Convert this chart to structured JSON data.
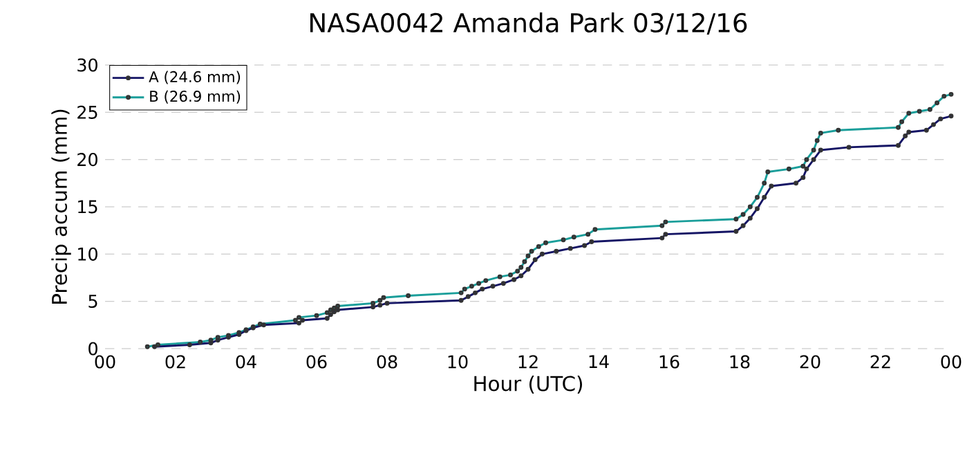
{
  "chart_data": {
    "type": "line",
    "title": "NASA0042 Amanda Park 03/12/16",
    "xlabel": "Hour (UTC)",
    "ylabel": "Precip accum (mm)",
    "xlim": [
      0,
      24
    ],
    "ylim": [
      0,
      30
    ],
    "xticks": [
      {
        "value": 0,
        "label": "00"
      },
      {
        "value": 2,
        "label": "02"
      },
      {
        "value": 4,
        "label": "04"
      },
      {
        "value": 6,
        "label": "06"
      },
      {
        "value": 8,
        "label": "08"
      },
      {
        "value": 10,
        "label": "10"
      },
      {
        "value": 12,
        "label": "12"
      },
      {
        "value": 14,
        "label": "14"
      },
      {
        "value": 16,
        "label": "16"
      },
      {
        "value": 18,
        "label": "18"
      },
      {
        "value": 20,
        "label": "20"
      },
      {
        "value": 22,
        "label": "22"
      },
      {
        "value": 24,
        "label": "00"
      }
    ],
    "yticks": [
      0,
      5,
      10,
      15,
      20,
      25,
      30
    ],
    "grid": "y",
    "legend": "top left",
    "marker": "circle",
    "line_style": "solid",
    "series": [
      {
        "name": "A (24.6 mm)",
        "color": "#141464",
        "x": [
          1.4,
          2.4,
          3.0,
          3.2,
          3.5,
          3.8,
          4.0,
          4.2,
          4.5,
          5.5,
          5.6,
          6.3,
          6.4,
          6.5,
          6.6,
          7.6,
          7.8,
          8.0,
          10.1,
          10.3,
          10.5,
          10.7,
          11.0,
          11.3,
          11.6,
          11.8,
          12.0,
          12.2,
          12.4,
          12.8,
          13.2,
          13.6,
          13.8,
          15.8,
          15.9,
          17.9,
          18.1,
          18.3,
          18.5,
          18.7,
          18.9,
          19.6,
          19.8,
          19.9,
          20.1,
          20.3,
          21.1,
          22.5,
          22.7,
          22.8,
          23.3,
          23.5,
          23.7,
          24.0
        ],
        "values": [
          0.2,
          0.4,
          0.6,
          0.9,
          1.2,
          1.5,
          1.9,
          2.2,
          2.5,
          2.7,
          3.0,
          3.2,
          3.6,
          3.9,
          4.1,
          4.4,
          4.6,
          4.8,
          5.1,
          5.5,
          5.9,
          6.3,
          6.6,
          6.9,
          7.3,
          7.7,
          8.4,
          9.4,
          10.0,
          10.3,
          10.6,
          10.9,
          11.3,
          11.7,
          12.1,
          12.4,
          13.0,
          13.8,
          14.8,
          16.0,
          17.2,
          17.5,
          18.1,
          19.0,
          20.0,
          21.0,
          21.3,
          21.5,
          22.5,
          22.9,
          23.1,
          23.7,
          24.3,
          24.6
        ]
      },
      {
        "name": "B (26.9 mm)",
        "color": "#1a9e9a",
        "x": [
          1.2,
          1.5,
          2.7,
          3.0,
          3.2,
          3.5,
          3.8,
          4.0,
          4.2,
          4.4,
          5.4,
          5.5,
          6.0,
          6.3,
          6.4,
          6.5,
          6.6,
          7.6,
          7.8,
          7.9,
          8.6,
          10.1,
          10.2,
          10.4,
          10.6,
          10.8,
          11.2,
          11.5,
          11.7,
          11.8,
          11.9,
          12.0,
          12.1,
          12.3,
          12.5,
          13.0,
          13.3,
          13.7,
          13.9,
          15.8,
          15.9,
          17.9,
          18.1,
          18.3,
          18.5,
          18.7,
          18.8,
          19.4,
          19.8,
          19.9,
          20.1,
          20.2,
          20.3,
          20.8,
          22.5,
          22.6,
          22.8,
          23.1,
          23.4,
          23.6,
          23.8,
          24.0
        ],
        "values": [
          0.2,
          0.4,
          0.7,
          0.9,
          1.2,
          1.4,
          1.7,
          2.0,
          2.3,
          2.6,
          3.0,
          3.3,
          3.5,
          3.8,
          4.1,
          4.3,
          4.5,
          4.8,
          5.1,
          5.4,
          5.6,
          5.9,
          6.3,
          6.6,
          6.9,
          7.2,
          7.6,
          7.8,
          8.2,
          8.6,
          9.2,
          9.8,
          10.3,
          10.8,
          11.2,
          11.5,
          11.8,
          12.1,
          12.6,
          13.0,
          13.4,
          13.7,
          14.2,
          15.0,
          16.0,
          17.5,
          18.7,
          19.0,
          19.3,
          20.0,
          21.0,
          22.0,
          22.8,
          23.1,
          23.4,
          24.0,
          24.9,
          25.1,
          25.3,
          26.0,
          26.7,
          26.9
        ]
      }
    ]
  }
}
